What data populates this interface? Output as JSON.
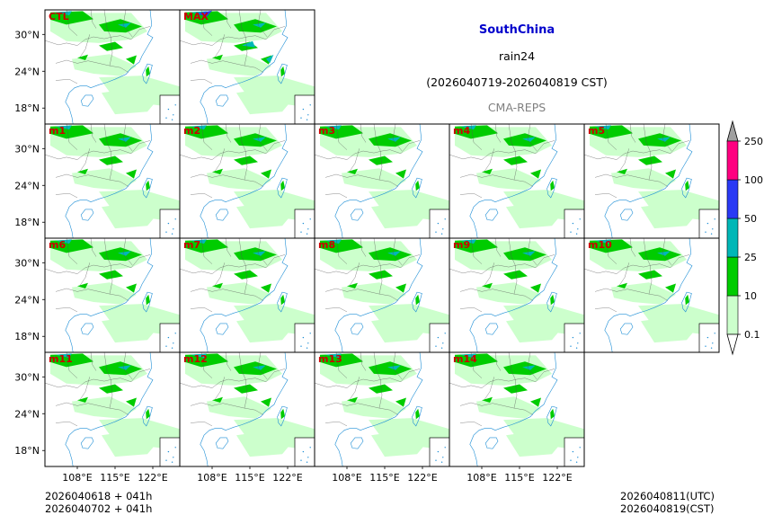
{
  "header": {
    "region": "SouthChina",
    "variable": "rain24",
    "period": "(2026040719-2026040819 CST)",
    "model": "CMA-REPS"
  },
  "footer": {
    "init_utc": "2026040618  +  041h",
    "init_cst": "2026040702  +  041h",
    "valid_utc": "2026040811(UTC)",
    "valid_cst": "2026040819(CST)"
  },
  "colors": {
    "level_0_1": "#ccffcc",
    "level_10": "#00cc00",
    "level_25": "#00b7b7",
    "level_50": "#2a3af5",
    "level_100": "#ff0080",
    "level_over": "#a0a0a0",
    "member_label": "#cc0000",
    "coast": "#1f8fd6"
  },
  "chart_data": {
    "type": "heatmap",
    "title": "SouthChina rain24 (2026040719-2026040819 CST) CMA-REPS",
    "panels": [
      "CTL",
      "MAX",
      "m1",
      "m2",
      "m3",
      "m4",
      "m5",
      "m6",
      "m7",
      "m8",
      "m9",
      "m10",
      "m11",
      "m12",
      "m13",
      "m14"
    ],
    "x_ticks": [
      "108°E",
      "115°E",
      "122°E"
    ],
    "y_ticks": [
      "30°N",
      "24°N",
      "18°N"
    ],
    "colorbar": {
      "levels": [
        0.1,
        10,
        25,
        50,
        100,
        250
      ],
      "labels": [
        "0.1",
        "10",
        "25",
        "50",
        "100",
        "250"
      ],
      "extend": "both"
    }
  }
}
